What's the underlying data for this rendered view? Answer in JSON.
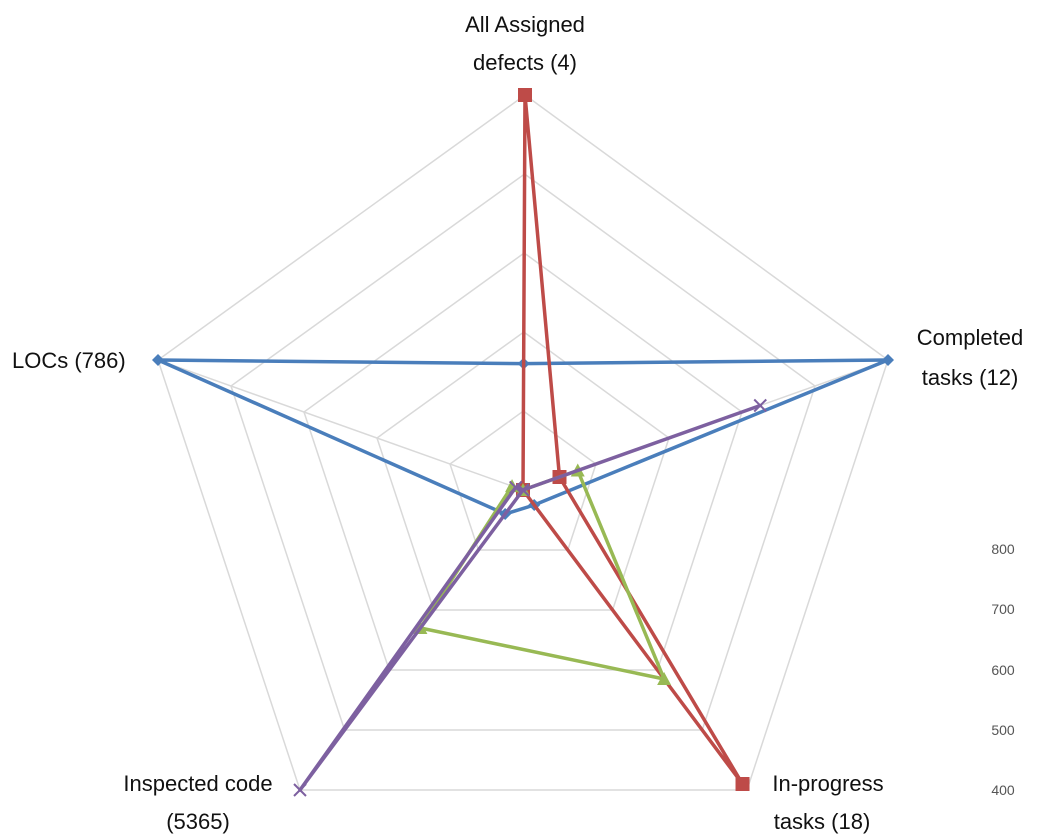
{
  "chart_data": {
    "type": "radar",
    "axes": [
      {
        "line1": "All Assigned",
        "line2": "defects (4)"
      },
      {
        "line1": "Completed",
        "line2": "tasks (12)"
      },
      {
        "line1": "In-progress",
        "line2": "tasks (18)"
      },
      {
        "line1": "Inspected code",
        "line2": "(5365)"
      },
      {
        "line1": "LOCs (786)",
        "line2": ""
      }
    ],
    "scale_ticks": [
      "800",
      "700",
      "600",
      "500",
      "400"
    ],
    "rings": 5,
    "series": [
      {
        "color": "#4a7ebb",
        "marker": "diamond",
        "values": [
          0.32,
          1.0,
          0.05,
          0.08,
          1.0
        ]
      },
      {
        "color": "#be4b48",
        "marker": "square",
        "values": [
          1.0,
          0.1,
          0.98,
          0.0,
          0.0
        ]
      },
      {
        "color": "#98b954",
        "marker": "triangle",
        "values": [
          0.0,
          0.15,
          0.63,
          0.46,
          0.03
        ]
      },
      {
        "color": "#7d60a0",
        "marker": "x",
        "values": [
          0.0,
          0.65,
          0.0,
          1.0,
          0.02
        ]
      }
    ]
  }
}
